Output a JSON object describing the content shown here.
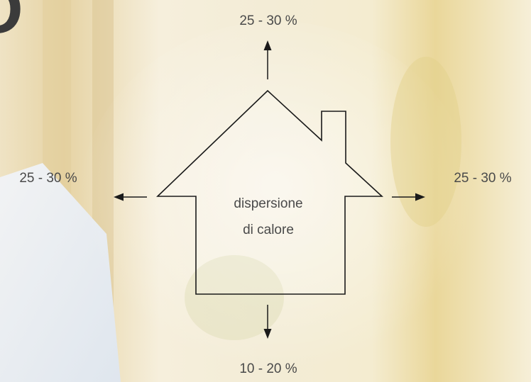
{
  "heading_fragment": "O",
  "diagram": {
    "center_label": [
      "dispersione",
      "di calore"
    ],
    "top_label": "25 - 30 %",
    "left_label": "25 - 30 %",
    "right_label": "25 - 30 %",
    "bottom_label": "10 - 20 %"
  }
}
